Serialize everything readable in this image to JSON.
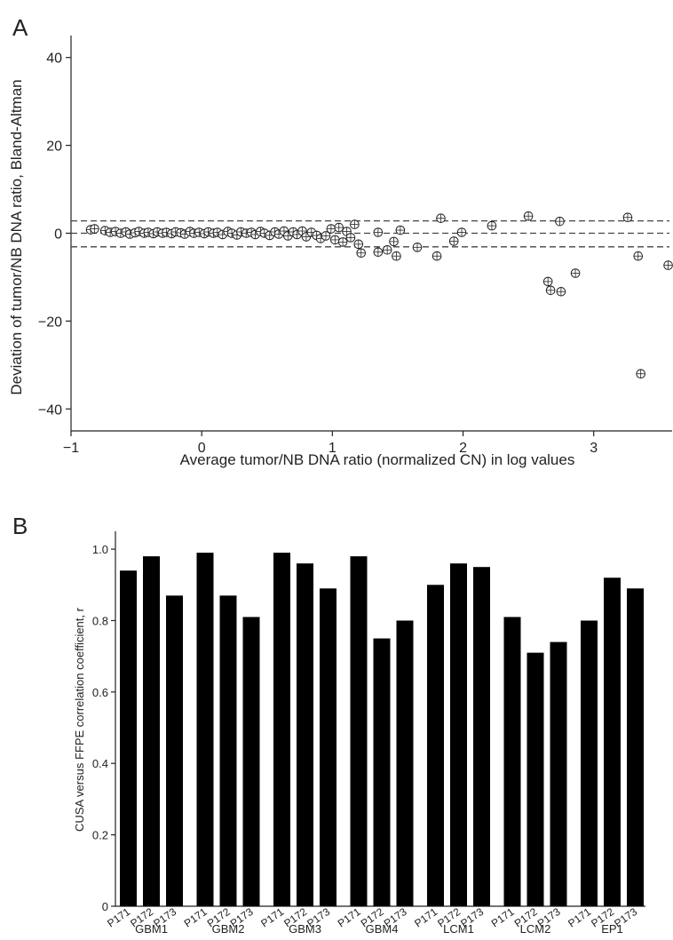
{
  "chart_data": [
    {
      "panel": "A",
      "type": "scatter",
      "title": "",
      "xlabel": "Average tumor/NB DNA ratio (normalized CN) in log values",
      "ylabel": "Deviation of tumor/NB DNA ratio, Bland-Altman",
      "xlim": [
        -1,
        3.6
      ],
      "ylim": [
        -45,
        45
      ],
      "xticks": [
        -1,
        0,
        1,
        2,
        3
      ],
      "yticks": [
        -40,
        -20,
        0,
        20,
        40
      ],
      "reference_lines": [
        2.8,
        0,
        -3.1
      ],
      "points": [
        [
          -0.85,
          0.8
        ],
        [
          -0.82,
          1.0
        ],
        [
          -0.74,
          0.6
        ],
        [
          -0.7,
          0.2
        ],
        [
          -0.66,
          0.4
        ],
        [
          -0.62,
          0.0
        ],
        [
          -0.58,
          0.3
        ],
        [
          -0.55,
          -0.2
        ],
        [
          -0.51,
          0.1
        ],
        [
          -0.48,
          0.4
        ],
        [
          -0.44,
          0.0
        ],
        [
          -0.41,
          0.2
        ],
        [
          -0.37,
          -0.1
        ],
        [
          -0.34,
          0.3
        ],
        [
          -0.3,
          0.0
        ],
        [
          -0.27,
          0.2
        ],
        [
          -0.23,
          -0.1
        ],
        [
          -0.2,
          0.3
        ],
        [
          -0.16,
          0.1
        ],
        [
          -0.13,
          -0.2
        ],
        [
          -0.09,
          0.4
        ],
        [
          -0.06,
          0.0
        ],
        [
          -0.02,
          0.2
        ],
        [
          0.02,
          -0.1
        ],
        [
          0.05,
          0.3
        ],
        [
          0.09,
          0.0
        ],
        [
          0.12,
          0.2
        ],
        [
          0.16,
          -0.3
        ],
        [
          0.2,
          0.4
        ],
        [
          0.23,
          0.0
        ],
        [
          0.27,
          -0.4
        ],
        [
          0.3,
          0.3
        ],
        [
          0.34,
          0.0
        ],
        [
          0.38,
          0.2
        ],
        [
          0.41,
          -0.3
        ],
        [
          0.45,
          0.4
        ],
        [
          0.48,
          0.0
        ],
        [
          0.52,
          -0.5
        ],
        [
          0.56,
          0.3
        ],
        [
          0.59,
          -0.2
        ],
        [
          0.63,
          0.5
        ],
        [
          0.66,
          -0.6
        ],
        [
          0.7,
          0.3
        ],
        [
          0.73,
          -0.3
        ],
        [
          0.77,
          0.5
        ],
        [
          0.8,
          -0.8
        ],
        [
          0.84,
          0.2
        ],
        [
          0.88,
          -0.5
        ],
        [
          0.91,
          -1.2
        ],
        [
          0.95,
          -0.6
        ],
        [
          0.99,
          1.0
        ],
        [
          1.02,
          -1.5
        ],
        [
          1.05,
          1.3
        ],
        [
          1.08,
          -2.0
        ],
        [
          1.11,
          0.4
        ],
        [
          1.14,
          -1.0
        ],
        [
          1.17,
          2.0
        ],
        [
          1.2,
          -2.5
        ],
        [
          1.22,
          -4.5
        ],
        [
          1.35,
          -4.3
        ],
        [
          1.35,
          0.2
        ],
        [
          1.42,
          -3.8
        ],
        [
          1.47,
          -1.9
        ],
        [
          1.49,
          -5.2
        ],
        [
          1.52,
          0.7
        ],
        [
          1.65,
          -3.2
        ],
        [
          1.8,
          -5.2
        ],
        [
          1.83,
          3.4
        ],
        [
          1.93,
          -1.8
        ],
        [
          1.99,
          0.2
        ],
        [
          2.22,
          1.7
        ],
        [
          2.5,
          3.9
        ],
        [
          2.65,
          -11.0
        ],
        [
          2.67,
          -13.0
        ],
        [
          2.74,
          2.7
        ],
        [
          2.75,
          -13.3
        ],
        [
          2.86,
          -9.1
        ],
        [
          3.26,
          3.6
        ],
        [
          3.34,
          -5.2
        ],
        [
          3.36,
          -32.0
        ],
        [
          3.57,
          -7.3
        ]
      ]
    },
    {
      "panel": "B",
      "type": "bar",
      "title": "",
      "xlabel": "",
      "ylabel": "CUSA versus FFPE correlation coefficient, r",
      "ylim": [
        0,
        1.05
      ],
      "yticks": [
        0,
        0.2,
        0.4,
        0.6,
        0.8,
        1.0
      ],
      "ytick_labels": [
        "0",
        "0.2",
        "0.4",
        "0.6",
        "0.8",
        "1.0"
      ],
      "groups": [
        {
          "name": "GBM1",
          "categories": [
            "P171",
            "P172",
            "P173"
          ],
          "values": [
            0.94,
            0.98,
            0.87
          ]
        },
        {
          "name": "GBM2",
          "categories": [
            "P171",
            "P172",
            "P173"
          ],
          "values": [
            0.99,
            0.87,
            0.81
          ]
        },
        {
          "name": "GBM3",
          "categories": [
            "P171",
            "P172",
            "P173"
          ],
          "values": [
            0.99,
            0.96,
            0.89
          ]
        },
        {
          "name": "GBM4",
          "categories": [
            "P171",
            "P172",
            "P173"
          ],
          "values": [
            0.98,
            0.75,
            0.8
          ]
        },
        {
          "name": "LCM1",
          "categories": [
            "P171",
            "P172",
            "P173"
          ],
          "values": [
            0.9,
            0.96,
            0.95
          ]
        },
        {
          "name": "LCM2",
          "categories": [
            "P171",
            "P172",
            "P173"
          ],
          "values": [
            0.81,
            0.71,
            0.74
          ]
        },
        {
          "name": "EP1",
          "categories": [
            "P171",
            "P172",
            "P173"
          ],
          "values": [
            0.8,
            0.92,
            0.89
          ]
        }
      ]
    }
  ]
}
